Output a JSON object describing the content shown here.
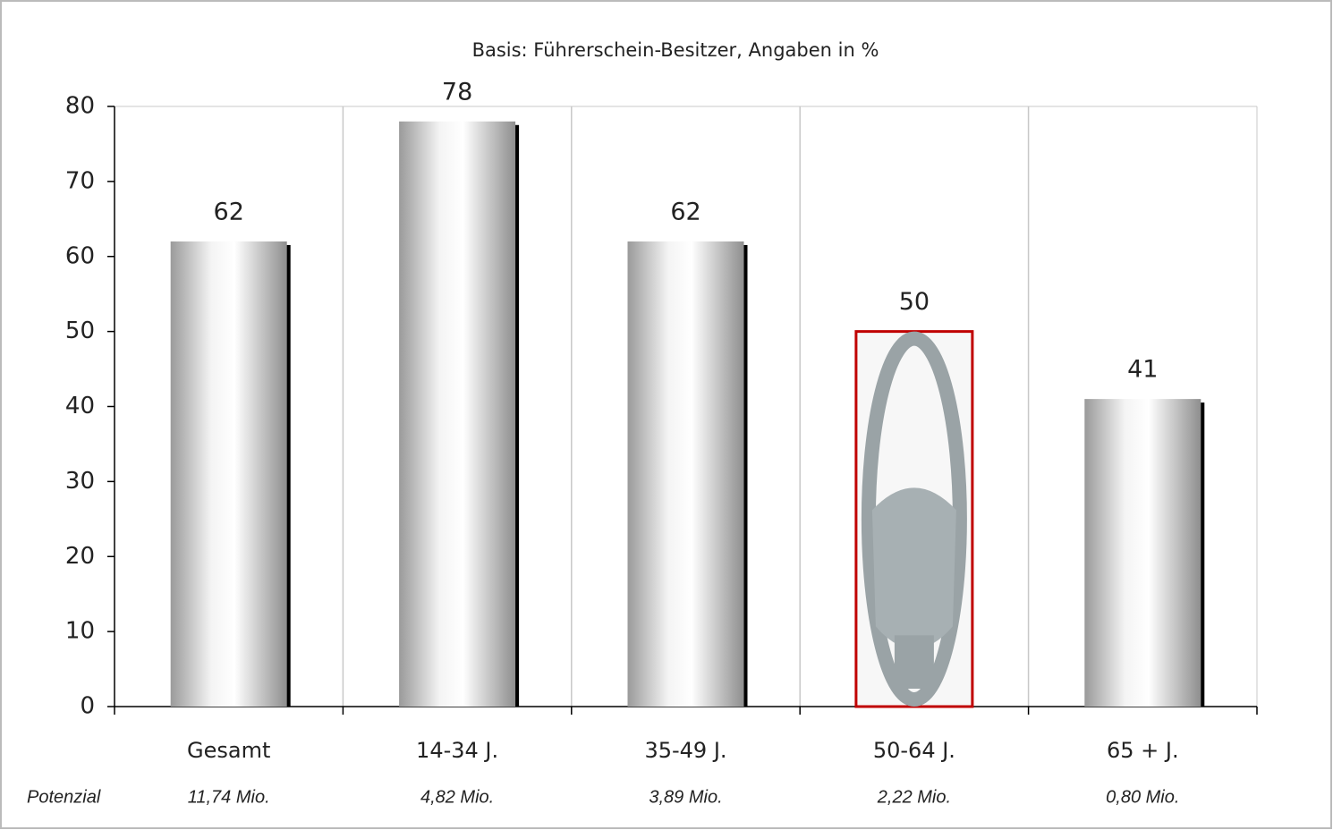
{
  "chart_data": {
    "type": "bar",
    "subtitle": "Basis: Führerschein-Besitzer, Angaben in %",
    "categories": [
      "Gesamt",
      "14-34 J.",
      "35-49 J.",
      "50-64 J.",
      "65 + J."
    ],
    "values": [
      62,
      78,
      62,
      50,
      41
    ],
    "color": "#c8c8c8",
    "highlight_category": "50-64 J.",
    "highlight_color": "#c00000",
    "ylim": [
      0,
      80
    ],
    "yticks": [
      0,
      10,
      20,
      30,
      40,
      50,
      60,
      70,
      80
    ],
    "grid": true,
    "potential": {
      "label": "Potenzial",
      "values": [
        "11,74 Mio.",
        "4,82 Mio.",
        "3,89 Mio.",
        "2,22 Mio.",
        "0,80 Mio."
      ]
    }
  }
}
